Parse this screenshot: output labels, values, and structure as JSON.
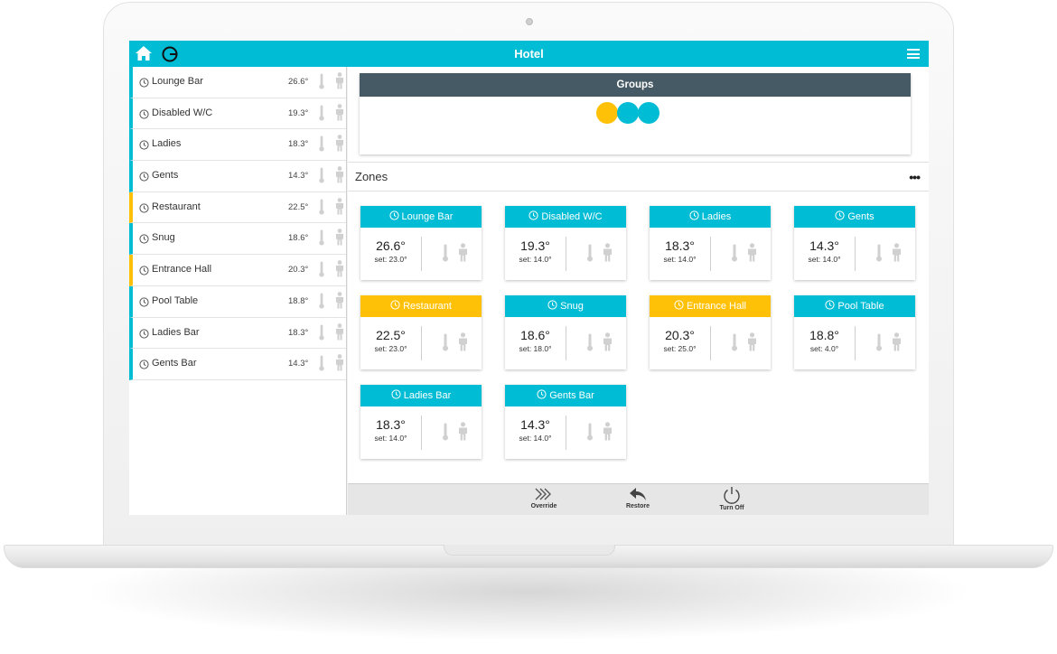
{
  "app": {
    "title": "Hotel"
  },
  "colors": {
    "accent": "#00bcd4",
    "amber": "#ffc107",
    "group_header": "#455a64",
    "icon_grey": "#d0d0d0"
  },
  "sidebar": {
    "items": [
      {
        "label": "Lounge Bar",
        "temp": "26.6°",
        "status": "cyan"
      },
      {
        "label": "Disabled W/C",
        "temp": "19.3°",
        "status": "cyan"
      },
      {
        "label": "Ladies",
        "temp": "18.3°",
        "status": "cyan"
      },
      {
        "label": "Gents",
        "temp": "14.3°",
        "status": "cyan"
      },
      {
        "label": "Restaurant",
        "temp": "22.5°",
        "status": "amber"
      },
      {
        "label": "Snug",
        "temp": "18.6°",
        "status": "cyan"
      },
      {
        "label": "Entrance Hall",
        "temp": "20.3°",
        "status": "amber"
      },
      {
        "label": "Pool Table",
        "temp": "18.8°",
        "status": "cyan"
      },
      {
        "label": "Ladies Bar",
        "temp": "18.3°",
        "status": "cyan"
      },
      {
        "label": "Gents Bar",
        "temp": "14.3°",
        "status": "cyan"
      }
    ]
  },
  "groups": {
    "title": "Groups",
    "dots": [
      "#ffc107",
      "#00bcd4",
      "#00bcd4"
    ]
  },
  "zones": {
    "title": "Zones",
    "more_icon": "•••",
    "cards": [
      {
        "name": "Lounge Bar",
        "temp": "26.6°",
        "set": "set: 23.0°",
        "status": "cyan"
      },
      {
        "name": "Disabled W/C",
        "temp": "19.3°",
        "set": "set: 14.0°",
        "status": "cyan"
      },
      {
        "name": "Ladies",
        "temp": "18.3°",
        "set": "set: 14.0°",
        "status": "cyan"
      },
      {
        "name": "Gents",
        "temp": "14.3°",
        "set": "set: 14.0°",
        "status": "cyan"
      },
      {
        "name": "Restaurant",
        "temp": "22.5°",
        "set": "set: 23.0°",
        "status": "amber"
      },
      {
        "name": "Snug",
        "temp": "18.6°",
        "set": "set: 18.0°",
        "status": "cyan"
      },
      {
        "name": "Entrance Hall",
        "temp": "20.3°",
        "set": "set: 25.0°",
        "status": "amber"
      },
      {
        "name": "Pool Table",
        "temp": "18.8°",
        "set": "set: 4.0°",
        "status": "cyan"
      },
      {
        "name": "Ladies Bar",
        "temp": "18.3°",
        "set": "set: 14.0°",
        "status": "cyan"
      },
      {
        "name": "Gents Bar",
        "temp": "14.3°",
        "set": "set: 14.0°",
        "status": "cyan"
      }
    ]
  },
  "toolbar": {
    "override_label": "Override",
    "restore_label": "Restore",
    "turn_off_label": "Turn Off"
  }
}
